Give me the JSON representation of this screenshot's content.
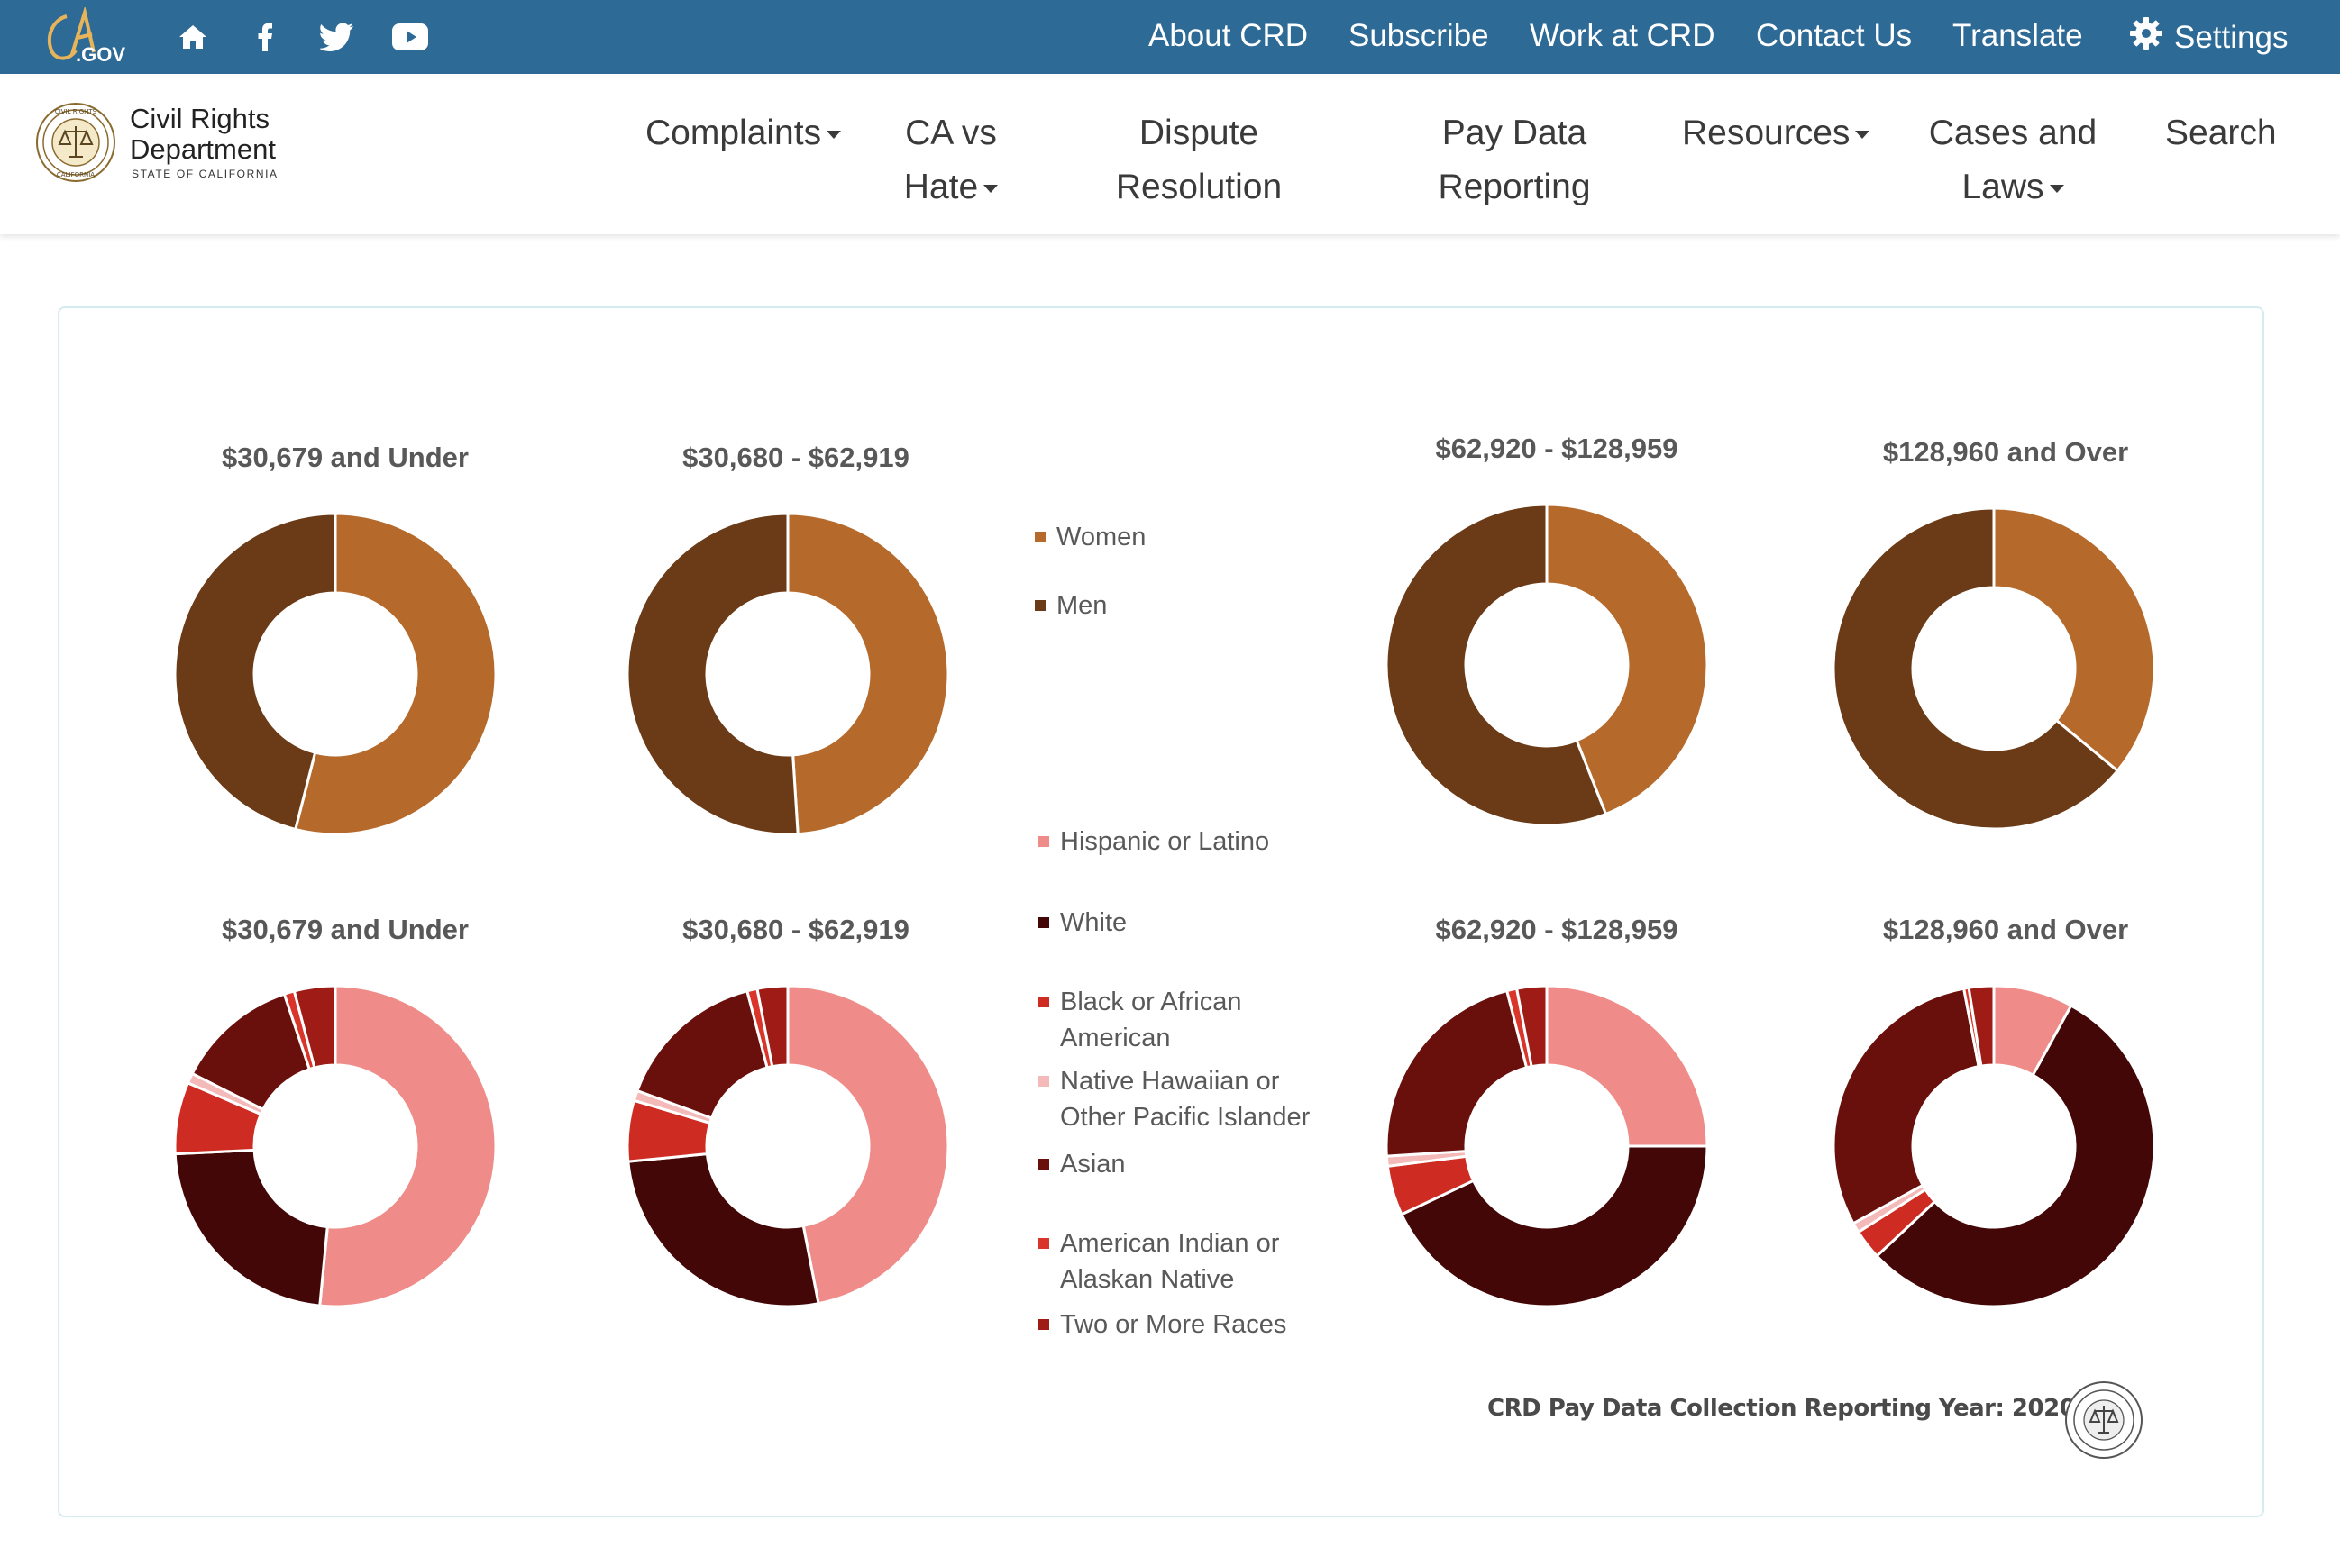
{
  "topbar": {
    "logo_text": "CA.GOV",
    "links": [
      "About CRD",
      "Subscribe",
      "Work at CRD",
      "Contact Us",
      "Translate"
    ],
    "settings_label": "Settings"
  },
  "brand": {
    "line1": "Civil Rights",
    "line2": "Department",
    "line3": "STATE OF CALIFORNIA",
    "seal_text": "CIVIL RIGHTS DEPARTMENT · STATE OF CALIFORNIA"
  },
  "nav": {
    "complaints": "Complaints",
    "ca_vs_hate_1": "CA vs",
    "ca_vs_hate_2": "Hate",
    "dispute_1": "Dispute",
    "dispute_2": "Resolution",
    "paydata_1": "Pay Data",
    "paydata_2": "Reporting",
    "resources": "Resources",
    "cases_1": "Cases and",
    "cases_2": "Laws",
    "search": "Search"
  },
  "colors": {
    "topbar": "#2e6a96",
    "women": "#b5692a",
    "men": "#6b3a16",
    "hispanic": "#ef8c89",
    "white": "#430707",
    "black": "#ce2b22",
    "nhpi": "#f4b9b9",
    "asian": "#69100c",
    "aian": "#d9352a",
    "two_or_more": "#9e1b16"
  },
  "legend_gender": [
    "Women",
    "Men"
  ],
  "legend_race": [
    "Hispanic or Latino",
    "White",
    "Black or African",
    "American",
    "Native Hawaiian or",
    "Other Pacific Islander",
    "Asian",
    "American Indian or",
    "Alaskan Native",
    "Two or More Races"
  ],
  "footer": {
    "note": "CRD Pay Data Collection Reporting Year: 2020"
  },
  "chart_data": [
    {
      "type": "pie",
      "variant": "donut",
      "title": "$30,679 and Under",
      "categories": [
        "Women",
        "Men"
      ],
      "values": [
        54,
        46
      ]
    },
    {
      "type": "pie",
      "variant": "donut",
      "title": "$30,680 - $62,919",
      "categories": [
        "Women",
        "Men"
      ],
      "values": [
        49,
        51
      ]
    },
    {
      "type": "pie",
      "variant": "donut",
      "title": "$62,920 - $128,959",
      "categories": [
        "Women",
        "Men"
      ],
      "values": [
        44,
        56
      ]
    },
    {
      "type": "pie",
      "variant": "donut",
      "title": "$128,960 and Over",
      "categories": [
        "Women",
        "Men"
      ],
      "values": [
        36,
        64
      ]
    },
    {
      "type": "pie",
      "variant": "donut",
      "title": "$30,679 and Under",
      "categories": [
        "Hispanic or Latino",
        "White",
        "Black or African American",
        "Native Hawaiian or Other Pacific Islander",
        "Asian",
        "American Indian or Alaskan Native",
        "Two or More Races"
      ],
      "values": [
        50,
        22,
        7,
        1,
        12,
        1,
        4
      ]
    },
    {
      "type": "pie",
      "variant": "donut",
      "title": "$30,680 - $62,919",
      "categories": [
        "Hispanic or Latino",
        "White",
        "Black or African American",
        "Native Hawaiian or Other Pacific Islander",
        "Asian",
        "American Indian or Alaskan Native",
        "Two or More Races"
      ],
      "values": [
        46,
        26,
        6,
        1,
        15,
        1,
        3
      ]
    },
    {
      "type": "pie",
      "variant": "donut",
      "title": "$62,920 - $128,959",
      "categories": [
        "Hispanic or Latino",
        "White",
        "Black or African American",
        "Native Hawaiian or Other Pacific Islander",
        "Asian",
        "American Indian or Alaskan Native",
        "Two or More Races"
      ],
      "values": [
        25,
        43,
        5,
        1,
        22,
        1,
        3
      ]
    },
    {
      "type": "pie",
      "variant": "donut",
      "title": "$128,960 and Over",
      "categories": [
        "Hispanic or Latino",
        "White",
        "Black or African American",
        "Native Hawaiian or Other Pacific Islander",
        "Asian",
        "American Indian or Alaskan Native",
        "Two or More Races"
      ],
      "values": [
        8,
        55,
        3,
        1,
        30,
        0.5,
        2.5
      ]
    }
  ]
}
